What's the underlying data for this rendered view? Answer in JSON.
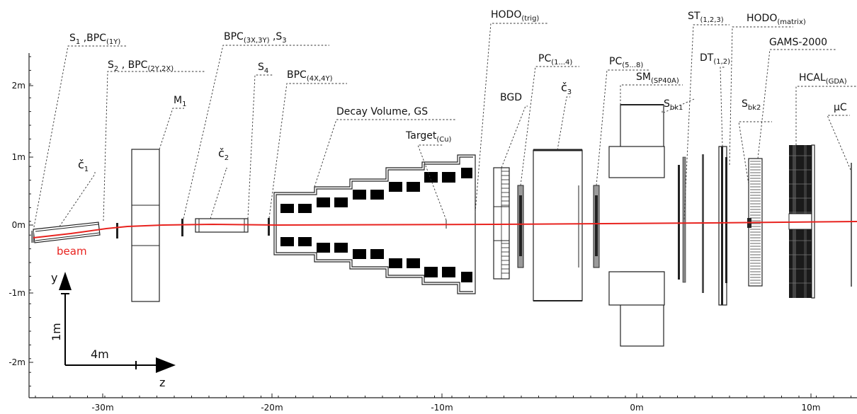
{
  "axes": {
    "x_ticks": [
      "-30m",
      "-20m",
      "-10m",
      "0m",
      "10m"
    ],
    "y_ticks": [
      "2m",
      "1m",
      "0m",
      "-1m",
      "-2m"
    ]
  },
  "scale": {
    "y_axis_label": "y",
    "z_axis_label": "z",
    "vertical_length": "1m",
    "horizontal_length": "4m"
  },
  "beam": {
    "label": "beam",
    "color": "#e8231f"
  },
  "detectors": [
    {
      "id": "s1-bpc1y",
      "main": "S",
      "parts": [
        [
          "1",
          "S1"
        ],
        [
          " ,BPC",
          ""
        ],
        [
          "(1Y)",
          "S"
        ]
      ]
    },
    {
      "id": "s2-bpc2y2x",
      "parts": [
        [
          "S",
          ""
        ],
        [
          "2",
          "S"
        ],
        [
          " , BPC",
          ""
        ],
        [
          "(2Y,2X)",
          "S"
        ]
      ]
    },
    {
      "id": "c1",
      "parts": [
        [
          "č",
          "B"
        ],
        [
          "1",
          "S"
        ]
      ]
    },
    {
      "id": "m1",
      "parts": [
        [
          "M",
          ""
        ],
        [
          "1",
          "S"
        ]
      ]
    },
    {
      "id": "bpc3x3y-s3",
      "parts": [
        [
          "BPC",
          ""
        ],
        [
          "(3X,3Y)",
          "S"
        ],
        [
          " ,S",
          ""
        ],
        [
          "3",
          "S"
        ]
      ]
    },
    {
      "id": "s4",
      "parts": [
        [
          "S",
          ""
        ],
        [
          "4",
          "S"
        ]
      ]
    },
    {
      "id": "c2",
      "parts": [
        [
          "č",
          "B"
        ],
        [
          "2",
          "S"
        ]
      ]
    },
    {
      "id": "bpc4x4y",
      "parts": [
        [
          "BPC",
          ""
        ],
        [
          "(4X,4Y)",
          "S"
        ]
      ]
    },
    {
      "id": "decay-volume",
      "parts": [
        [
          "Decay Volume, GS",
          ""
        ]
      ]
    },
    {
      "id": "target",
      "parts": [
        [
          "Target",
          ""
        ],
        [
          "(Cu)",
          "S"
        ]
      ]
    },
    {
      "id": "hodo-trig",
      "parts": [
        [
          "HODO",
          ""
        ],
        [
          "(trig)",
          "S"
        ]
      ]
    },
    {
      "id": "bgd",
      "parts": [
        [
          "BGD",
          ""
        ]
      ]
    },
    {
      "id": "pc1-4",
      "parts": [
        [
          "PC",
          ""
        ],
        [
          "(1...4)",
          "S"
        ]
      ]
    },
    {
      "id": "c3",
      "parts": [
        [
          "č",
          "B"
        ],
        [
          "3",
          "S"
        ]
      ]
    },
    {
      "id": "pc5-8",
      "parts": [
        [
          "PC",
          ""
        ],
        [
          "(5...8)",
          "S"
        ]
      ]
    },
    {
      "id": "sm",
      "parts": [
        [
          "SM",
          ""
        ],
        [
          "(SP40A)",
          "S"
        ]
      ]
    },
    {
      "id": "sbk1",
      "parts": [
        [
          "S",
          ""
        ],
        [
          "bk1",
          "S"
        ]
      ]
    },
    {
      "id": "st123",
      "parts": [
        [
          "ST",
          ""
        ],
        [
          "(1,2,3)",
          "S"
        ]
      ]
    },
    {
      "id": "dt12",
      "parts": [
        [
          "DT",
          ""
        ],
        [
          "(1,2)",
          "S"
        ]
      ]
    },
    {
      "id": "hodo-matrix",
      "parts": [
        [
          "HODO",
          ""
        ],
        [
          "(matrix)",
          "S"
        ]
      ]
    },
    {
      "id": "sbk2",
      "parts": [
        [
          "S",
          ""
        ],
        [
          "bk2",
          "S"
        ]
      ]
    },
    {
      "id": "gams",
      "parts": [
        [
          "GAMS-2000",
          ""
        ]
      ]
    },
    {
      "id": "hcal",
      "parts": [
        [
          "HCAL",
          ""
        ],
        [
          "(GDA)",
          "S"
        ]
      ]
    },
    {
      "id": "muc",
      "parts": [
        [
          "μC",
          ""
        ]
      ]
    }
  ]
}
